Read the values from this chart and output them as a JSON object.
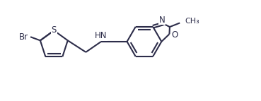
{
  "bg_color": "#ffffff",
  "line_color": "#2d2d4a",
  "line_width": 1.5,
  "figsize": [
    3.69,
    1.43
  ],
  "dpi": 100,
  "xlim": [
    0,
    9.2
  ],
  "ylim": [
    0,
    3.6
  ]
}
